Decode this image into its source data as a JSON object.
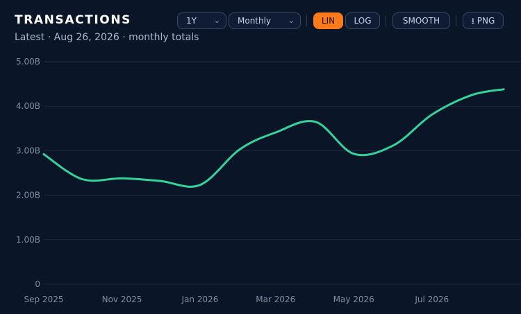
{
  "header": {
    "title": "TRANSACTIONS",
    "subtitle": "Latest · Aug 26, 2026 · monthly totals"
  },
  "controls": {
    "range": {
      "value": "1Y",
      "chevron": "chevron-down-icon"
    },
    "interval": {
      "value": "Monthly",
      "chevron": "chevron-down-icon"
    },
    "lin": "LIN",
    "log": "LOG",
    "smooth": "SMOOTH",
    "png": "⭳ PNG",
    "active_scale": "LIN"
  },
  "colors": {
    "background": "#0b1528",
    "line": "#34d399",
    "accent": "#ff7a1a"
  },
  "chart_data": {
    "type": "line",
    "title": "TRANSACTIONS",
    "subtitle": "Latest · Aug 26, 2026 · monthly totals",
    "xlabel": "",
    "ylabel": "",
    "scale": "linear",
    "smooth": true,
    "grid": true,
    "x": [
      "2025-09-01",
      "2025-10-01",
      "2025-11-01",
      "2025-12-01",
      "2026-01-01",
      "2026-02-01",
      "2026-03-01",
      "2026-04-01",
      "2026-05-01",
      "2026-06-01",
      "2026-07-01",
      "2026-08-01",
      "2026-08-26"
    ],
    "x_tick_labels": [
      "Sep 2025",
      "Nov 2025",
      "Jan 2026",
      "Mar 2026",
      "May 2026",
      "Jul 2026"
    ],
    "x_tick_dates": [
      "2025-09-01",
      "2025-11-01",
      "2026-01-01",
      "2026-03-01",
      "2026-05-01",
      "2026-07-01"
    ],
    "x_range": [
      "2025-09-01",
      "2026-08-26"
    ],
    "y_tick_labels": [
      "0",
      "1.00B",
      "2.00B",
      "3.00B",
      "4.00B",
      "5.00B"
    ],
    "y_tick_values": [
      0,
      1,
      2,
      3,
      4,
      5
    ],
    "ylim": [
      0,
      5
    ],
    "y_unit": "B",
    "series": [
      {
        "name": "",
        "color": "#34d399",
        "values": [
          2.92,
          2.36,
          2.38,
          2.32,
          2.23,
          3.03,
          3.41,
          3.65,
          2.93,
          3.12,
          3.81,
          4.25,
          4.38
        ]
      }
    ]
  }
}
